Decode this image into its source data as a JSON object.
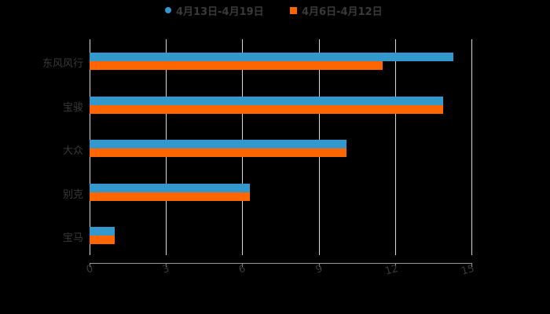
{
  "chart_data": {
    "type": "bar",
    "orientation": "horizontal",
    "title": "",
    "categories": [
      "东风风行",
      "宝骏",
      "大众",
      "别克",
      "宝马"
    ],
    "series": [
      {
        "name": "4月13日-4月19日",
        "color": "#3399cc",
        "values": [
          14.3,
          13.9,
          10.1,
          6.3,
          1.0
        ]
      },
      {
        "name": "4月6日-4月12日",
        "color": "#ff6600",
        "values": [
          11.5,
          13.9,
          10.1,
          6.3,
          1.0
        ]
      }
    ],
    "xlabel": "",
    "ylabel": "",
    "xlim": [
      0,
      15
    ],
    "xticks": [
      "0",
      "3",
      "6",
      "9",
      "12",
      "15"
    ],
    "grid": true,
    "legend_position": "top"
  },
  "legend": {
    "series1": "4月13日-4月19日",
    "series2": "4月6日-4月12日"
  },
  "axis": {
    "ticks": [
      "0",
      "3",
      "6",
      "9",
      "12",
      "15"
    ]
  },
  "categories": [
    "东风风行",
    "宝骏",
    "大众",
    "别克",
    "宝马"
  ]
}
